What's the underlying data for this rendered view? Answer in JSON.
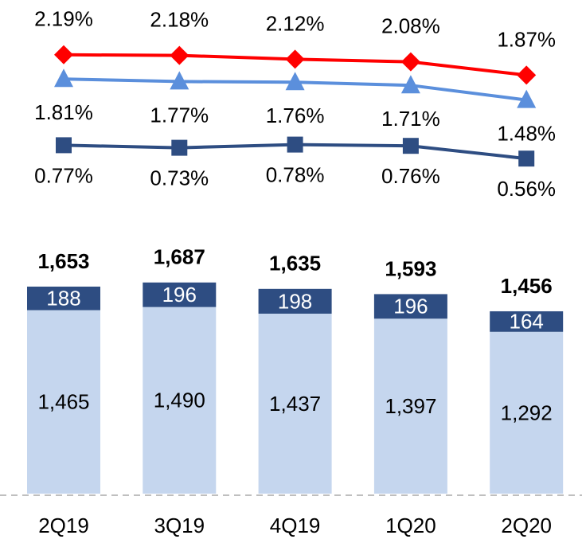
{
  "chart_data": [
    {
      "type": "line",
      "categories": [
        "2Q19",
        "3Q19",
        "4Q19",
        "1Q20",
        "2Q20"
      ],
      "series": [
        {
          "color": "#ff0000",
          "marker": "diamond",
          "values": [
            2.19,
            2.18,
            2.12,
            2.08,
            1.87
          ],
          "value_labels": [
            "2.19%",
            "2.18%",
            "2.12%",
            "2.08%",
            "1.87%"
          ]
        },
        {
          "color": "#5b8fdc",
          "marker": "triangle",
          "values": [
            1.81,
            1.77,
            1.76,
            1.71,
            1.48
          ],
          "value_labels": [
            "1.81%",
            "1.77%",
            "1.76%",
            "1.71%",
            "1.48%"
          ]
        },
        {
          "color": "#2e4d82",
          "marker": "square",
          "values": [
            0.77,
            0.73,
            0.78,
            0.76,
            0.56
          ],
          "value_labels": [
            "0.77%",
            "0.73%",
            "0.78%",
            "0.76%",
            "0.56%"
          ]
        }
      ]
    },
    {
      "type": "stacked_bar",
      "categories": [
        "2Q19",
        "3Q19",
        "4Q19",
        "1Q20",
        "2Q20"
      ],
      "series": [
        {
          "color": "#c5d6ee",
          "values": [
            1465,
            1490,
            1437,
            1397,
            1292
          ],
          "value_labels": [
            "1,465",
            "1,490",
            "1,437",
            "1,397",
            "1,292"
          ]
        },
        {
          "color": "#2e4d82",
          "values": [
            188,
            196,
            198,
            196,
            164
          ],
          "value_labels": [
            "188",
            "196",
            "198",
            "196",
            "164"
          ]
        }
      ],
      "totals": [
        1653,
        1687,
        1635,
        1593,
        1456
      ],
      "totals_labels": [
        "1,653",
        "1,687",
        "1,635",
        "1,593",
        "1,456"
      ]
    }
  ]
}
